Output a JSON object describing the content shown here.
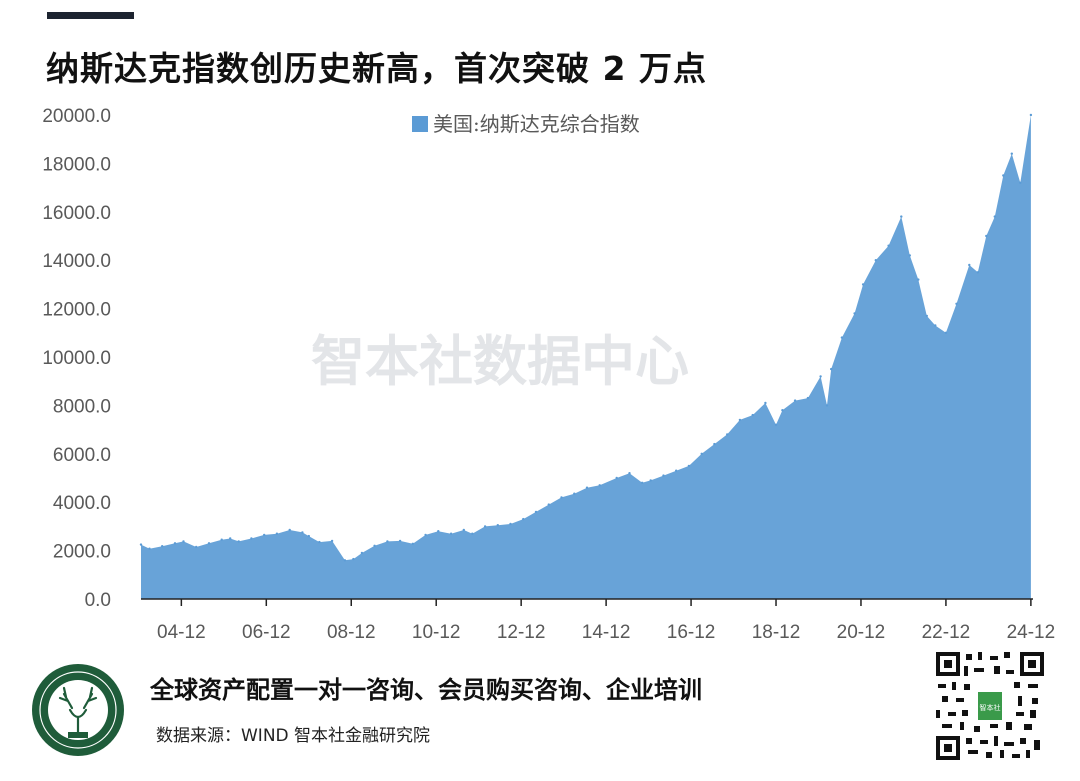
{
  "header": {
    "title": "纳斯达克指数创历史新高，首次突破 2 万点"
  },
  "watermark": "智本社数据中心",
  "colors": {
    "series": "#5b9bd5",
    "axis": "#222222",
    "tick_text": "#595959",
    "header_bar": "#1d2430",
    "logo_green": "#1f5c3a"
  },
  "chart_data": {
    "type": "area",
    "series": [
      {
        "name": "美国:纳斯达克综合指数",
        "color": "#5b9bd5",
        "x": [
          2004.0,
          2004.2,
          2004.5,
          2004.8,
          2005.0,
          2005.3,
          2005.6,
          2005.9,
          2006.1,
          2006.3,
          2006.6,
          2006.9,
          2007.2,
          2007.5,
          2007.8,
          2007.95,
          2008.2,
          2008.5,
          2008.8,
          2009.0,
          2009.2,
          2009.5,
          2009.8,
          2010.1,
          2010.4,
          2010.7,
          2011.0,
          2011.3,
          2011.6,
          2011.8,
          2012.1,
          2012.4,
          2012.7,
          2013.0,
          2013.3,
          2013.6,
          2013.9,
          2014.2,
          2014.5,
          2014.8,
          2015.2,
          2015.5,
          2015.8,
          2016.0,
          2016.3,
          2016.6,
          2016.9,
          2017.2,
          2017.5,
          2017.8,
          2018.1,
          2018.4,
          2018.7,
          2018.95,
          2019.1,
          2019.4,
          2019.7,
          2020.0,
          2020.15,
          2020.25,
          2020.5,
          2020.8,
          2021.0,
          2021.3,
          2021.6,
          2021.9,
          2022.1,
          2022.3,
          2022.5,
          2022.7,
          2022.95,
          2023.2,
          2023.5,
          2023.7,
          2023.9,
          2024.1,
          2024.3,
          2024.5,
          2024.7,
          2024.95
        ],
        "values": [
          2250,
          2080,
          2180,
          2300,
          2380,
          2150,
          2300,
          2450,
          2500,
          2380,
          2500,
          2650,
          2700,
          2850,
          2750,
          2600,
          2350,
          2400,
          1600,
          1650,
          1900,
          2200,
          2380,
          2400,
          2280,
          2650,
          2800,
          2700,
          2850,
          2700,
          3000,
          3050,
          3100,
          3300,
          3600,
          3900,
          4200,
          4350,
          4600,
          4700,
          5000,
          5200,
          4800,
          4900,
          5100,
          5300,
          5500,
          6000,
          6400,
          6800,
          7400,
          7600,
          8100,
          7200,
          7800,
          8200,
          8300,
          9200,
          8000,
          9500,
          10800,
          11800,
          13000,
          14000,
          14600,
          15800,
          14200,
          13200,
          11700,
          11300,
          11000,
          12200,
          13800,
          13500,
          15000,
          15800,
          17500,
          18400,
          17200,
          20000
        ]
      }
    ],
    "xlim": [
      2004.0,
      2025.0
    ],
    "ylim": [
      0,
      20000
    ],
    "x_ticks": [
      2004.95,
      2006.95,
      2008.95,
      2010.95,
      2012.95,
      2014.95,
      2016.95,
      2018.95,
      2020.95,
      2022.95,
      2024.95
    ],
    "x_tick_labels": [
      "04-12",
      "06-12",
      "08-12",
      "10-12",
      "12-12",
      "14-12",
      "16-12",
      "18-12",
      "20-12",
      "22-12",
      "24-12"
    ],
    "y_ticks": [
      0,
      2000,
      4000,
      6000,
      8000,
      10000,
      12000,
      14000,
      16000,
      18000,
      20000
    ],
    "y_tick_labels": [
      "0.0",
      "2000.0",
      "4000.0",
      "6000.0",
      "8000.0",
      "10000.0",
      "12000.0",
      "14000.0",
      "16000.0",
      "18000.0",
      "20000.0"
    ],
    "legend_position": "top-center",
    "grid": false
  },
  "footer": {
    "title": "全球资产配置一对一咨询、会员购买咨询、企业培训",
    "source": "数据来源：WIND 智本社金融研究院"
  },
  "logo": {
    "label": "智本社 ZHI BEN SHE",
    "icon": "deer-logo-icon"
  },
  "qr": {
    "center_text": "智本社",
    "icon": "qr-code-icon"
  }
}
